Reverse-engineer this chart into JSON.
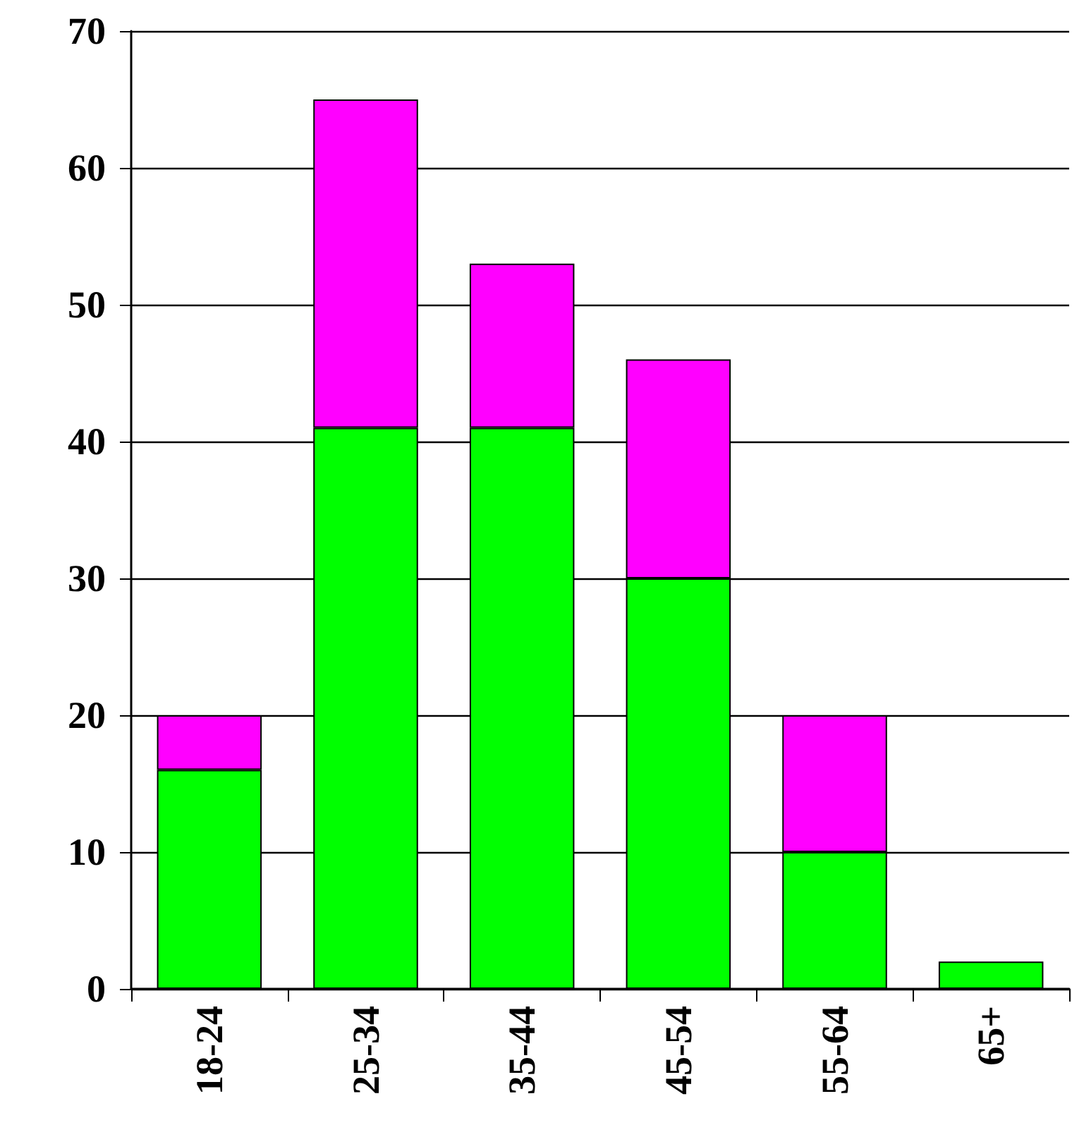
{
  "chart_data": {
    "type": "bar",
    "stacked": true,
    "categories": [
      "18-24",
      "25-34",
      "35-44",
      "45-54",
      "55-64",
      "65+"
    ],
    "series": [
      {
        "color": "#00ff00",
        "values": [
          16,
          41,
          41,
          30,
          10,
          2
        ]
      },
      {
        "color": "#ff00ff",
        "values": [
          4,
          24,
          12,
          16,
          10,
          null
        ]
      }
    ],
    "ylim": [
      0,
      70
    ],
    "yticks": [
      0,
      10,
      20,
      30,
      40,
      50,
      60,
      70
    ],
    "grid": "y"
  }
}
